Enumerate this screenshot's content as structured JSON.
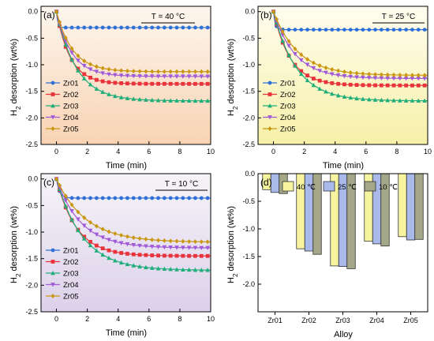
{
  "chart_data": [
    {
      "type": "line",
      "panel_label": "(a)",
      "temperature_label": "T = 40 °C",
      "xlabel": "Time (min)",
      "ylabel": "H2 desorption (wt%)",
      "xlim": [
        -1,
        10
      ],
      "ylim": [
        -2.5,
        0.1
      ],
      "xticks": [
        0,
        2,
        4,
        6,
        8,
        10
      ],
      "yticks": [
        0.0,
        -0.5,
        -1.0,
        -1.5,
        -2.0,
        -2.5
      ],
      "background": [
        "#fdf6ee",
        "#f8d3b3"
      ],
      "legend_position": "bottom-left",
      "series": [
        {
          "name": "Zr01",
          "color": "#2f6fd6",
          "marker": "circle",
          "final": -0.3,
          "tau": 0.09
        },
        {
          "name": "Zr02",
          "color": "#e8333a",
          "marker": "square",
          "final": -1.36,
          "tau": 0.9
        },
        {
          "name": "Zr03",
          "color": "#1fae7a",
          "marker": "triangle-up",
          "final": -1.68,
          "tau": 1.3
        },
        {
          "name": "Zr04",
          "color": "#a15ad8",
          "marker": "triangle-down",
          "final": -1.22,
          "tau": 1.0
        },
        {
          "name": "Zr05",
          "color": "#c9960d",
          "marker": "diamond",
          "final": -1.13,
          "tau": 1.05
        }
      ]
    },
    {
      "type": "line",
      "panel_label": "(b)",
      "temperature_label": "T = 25 °C",
      "xlabel": "Time (min)",
      "ylabel": "H2 desorption (wt%)",
      "xlim": [
        -1,
        10
      ],
      "ylim": [
        -2.5,
        0.1
      ],
      "xticks": [
        0,
        2,
        4,
        6,
        8,
        10
      ],
      "yticks": [
        0.0,
        -0.5,
        -1.0,
        -1.5,
        -2.0,
        -2.5
      ],
      "background": [
        "#fffdf0",
        "#f6f0a8"
      ],
      "legend_position": "bottom-left",
      "series": [
        {
          "name": "Zr01",
          "color": "#2f6fd6",
          "marker": "circle",
          "final": -0.34,
          "tau": 0.12
        },
        {
          "name": "Zr02",
          "color": "#e8333a",
          "marker": "square",
          "final": -1.39,
          "tau": 1.1
        },
        {
          "name": "Zr03",
          "color": "#1fae7a",
          "marker": "triangle-up",
          "final": -1.68,
          "tau": 1.5
        },
        {
          "name": "Zr04",
          "color": "#a15ad8",
          "marker": "triangle-down",
          "final": -1.26,
          "tau": 1.4
        },
        {
          "name": "Zr05",
          "color": "#c9960d",
          "marker": "diamond",
          "final": -1.2,
          "tau": 1.6
        }
      ]
    },
    {
      "type": "line",
      "panel_label": "(c)",
      "temperature_label": "T = 10 °C",
      "xlabel": "Time (min)",
      "ylabel": "H2 desorption (wt%)",
      "xlim": [
        -1,
        10
      ],
      "ylim": [
        -2.5,
        0.1
      ],
      "xticks": [
        0,
        2,
        4,
        6,
        8,
        10
      ],
      "yticks": [
        0.0,
        -0.5,
        -1.0,
        -1.5,
        -2.0,
        -2.5
      ],
      "background": [
        "#f6f4f8",
        "#dcd1ea"
      ],
      "legend_position": "bottom-left",
      "series": [
        {
          "name": "Zr01",
          "color": "#2f6fd6",
          "marker": "circle",
          "final": -0.36,
          "tau": 0.2
        },
        {
          "name": "Zr02",
          "color": "#e8333a",
          "marker": "square",
          "final": -1.45,
          "tau": 1.3
        },
        {
          "name": "Zr03",
          "color": "#1fae7a",
          "marker": "triangle-up",
          "final": -1.72,
          "tau": 1.7
        },
        {
          "name": "Zr04",
          "color": "#a15ad8",
          "marker": "triangle-down",
          "final": -1.3,
          "tau": 1.6
        },
        {
          "name": "Zr05",
          "color": "#c9960d",
          "marker": "diamond",
          "final": -1.19,
          "tau": 1.9
        }
      ]
    },
    {
      "type": "bar",
      "panel_label": "(d)",
      "xlabel": "Alloy",
      "ylabel": "H2 desorption (wt%)",
      "categories": [
        "Zr01",
        "Zr02",
        "Zr03",
        "Zr04",
        "Zr05"
      ],
      "ylim": [
        0,
        -2.5
      ],
      "yticks": [
        0.0,
        -0.5,
        -1.0,
        -1.5,
        -2.0
      ],
      "legend_position": "top",
      "series": [
        {
          "name": "40 ℃",
          "color": "#f7f4a0",
          "values": [
            -0.29,
            -1.36,
            -1.67,
            -1.22,
            -1.14
          ]
        },
        {
          "name": "25 ℃",
          "color": "#a9b9ea",
          "values": [
            -0.34,
            -1.4,
            -1.68,
            -1.27,
            -1.2
          ]
        },
        {
          "name": "10 ℃",
          "color": "#a4a888",
          "values": [
            -0.36,
            -1.46,
            -1.72,
            -1.31,
            -1.19
          ]
        }
      ]
    }
  ]
}
